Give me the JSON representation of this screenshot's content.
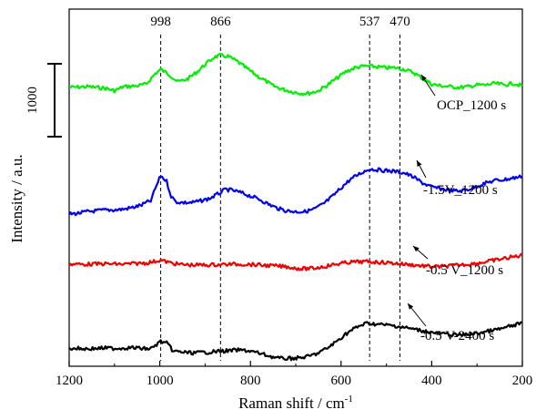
{
  "chart_data": {
    "type": "line",
    "title": "",
    "xlabel": "Raman shift / cm",
    "xlabel_superscript": "-1",
    "ylabel": "Intensity / a.u.",
    "xlim": [
      1200,
      200
    ],
    "x_reversed": true,
    "x_ticks": [
      1200,
      1000,
      800,
      600,
      400,
      200
    ],
    "x_tick_labels": [
      "1200",
      "1000",
      "800",
      "600",
      "400",
      "200"
    ],
    "y_ticks_shown": false,
    "grid": false,
    "legend": "none",
    "scale_bar": {
      "label": "1000",
      "value": 1000
    },
    "reference_lines": [
      {
        "x": 998,
        "label": "998"
      },
      {
        "x": 866,
        "label": "866"
      },
      {
        "x": 537,
        "label": "537"
      },
      {
        "x": 470,
        "label": "470"
      }
    ],
    "series": [
      {
        "name": "OCP_1200 s",
        "color": "#00ee00",
        "points": [
          [
            1200,
            1550
          ],
          [
            1160,
            1560
          ],
          [
            1120,
            1540
          ],
          [
            1100,
            1510
          ],
          [
            1080,
            1560
          ],
          [
            1050,
            1570
          ],
          [
            1030,
            1590
          ],
          [
            1010,
            1720
          ],
          [
            998,
            1770
          ],
          [
            980,
            1710
          ],
          [
            960,
            1620
          ],
          [
            940,
            1650
          ],
          [
            920,
            1730
          ],
          [
            900,
            1830
          ],
          [
            880,
            1920
          ],
          [
            866,
            1940
          ],
          [
            850,
            1930
          ],
          [
            830,
            1870
          ],
          [
            810,
            1790
          ],
          [
            790,
            1710
          ],
          [
            770,
            1640
          ],
          [
            750,
            1570
          ],
          [
            730,
            1530
          ],
          [
            710,
            1500
          ],
          [
            690,
            1480
          ],
          [
            670,
            1480
          ],
          [
            650,
            1510
          ],
          [
            630,
            1580
          ],
          [
            610,
            1660
          ],
          [
            590,
            1740
          ],
          [
            570,
            1790
          ],
          [
            550,
            1810
          ],
          [
            537,
            1810
          ],
          [
            520,
            1800
          ],
          [
            500,
            1790
          ],
          [
            480,
            1790
          ],
          [
            460,
            1770
          ],
          [
            440,
            1730
          ],
          [
            420,
            1660
          ],
          [
            400,
            1590
          ],
          [
            380,
            1570
          ],
          [
            360,
            1560
          ],
          [
            340,
            1550
          ],
          [
            320,
            1560
          ],
          [
            300,
            1580
          ],
          [
            280,
            1580
          ],
          [
            260,
            1600
          ],
          [
            240,
            1580
          ],
          [
            220,
            1600
          ],
          [
            200,
            1570
          ]
        ]
      },
      {
        "name": "-1.5V_1200 s",
        "color": "#0000ee",
        "points": [
          [
            1200,
            840
          ],
          [
            1180,
            850
          ],
          [
            1160,
            870
          ],
          [
            1140,
            880
          ],
          [
            1120,
            890
          ],
          [
            1100,
            890
          ],
          [
            1080,
            900
          ],
          [
            1060,
            920
          ],
          [
            1040,
            950
          ],
          [
            1030,
            980
          ],
          [
            1020,
            1000
          ],
          [
            1010,
            1150
          ],
          [
            998,
            1310
          ],
          [
            985,
            1240
          ],
          [
            975,
            1060
          ],
          [
            965,
            990
          ],
          [
            950,
            980
          ],
          [
            930,
            980
          ],
          [
            910,
            1000
          ],
          [
            890,
            1030
          ],
          [
            870,
            1090
          ],
          [
            855,
            1140
          ],
          [
            840,
            1130
          ],
          [
            820,
            1100
          ],
          [
            800,
            1060
          ],
          [
            780,
            1020
          ],
          [
            760,
            960
          ],
          [
            740,
            910
          ],
          [
            720,
            880
          ],
          [
            700,
            870
          ],
          [
            680,
            870
          ],
          [
            660,
            900
          ],
          [
            640,
            960
          ],
          [
            620,
            1050
          ],
          [
            600,
            1160
          ],
          [
            580,
            1260
          ],
          [
            560,
            1330
          ],
          [
            545,
            1370
          ],
          [
            537,
            1390
          ],
          [
            520,
            1380
          ],
          [
            500,
            1370
          ],
          [
            480,
            1360
          ],
          [
            460,
            1340
          ],
          [
            440,
            1290
          ],
          [
            420,
            1220
          ],
          [
            400,
            1170
          ],
          [
            380,
            1150
          ],
          [
            360,
            1130
          ],
          [
            340,
            1120
          ],
          [
            320,
            1140
          ],
          [
            300,
            1180
          ],
          [
            280,
            1220
          ],
          [
            260,
            1250
          ],
          [
            240,
            1260
          ],
          [
            220,
            1280
          ],
          [
            200,
            1300
          ]
        ]
      },
      {
        "name": "-0.5 V_1200 s",
        "color": "#ee0000",
        "points": [
          [
            1200,
            670
          ],
          [
            1160,
            670
          ],
          [
            1120,
            675
          ],
          [
            1080,
            670
          ],
          [
            1050,
            680
          ],
          [
            1030,
            685
          ],
          [
            1010,
            705
          ],
          [
            998,
            720
          ],
          [
            980,
            690
          ],
          [
            960,
            670
          ],
          [
            930,
            660
          ],
          [
            900,
            660
          ],
          [
            870,
            665
          ],
          [
            840,
            670
          ],
          [
            810,
            670
          ],
          [
            780,
            660
          ],
          [
            750,
            650
          ],
          [
            720,
            640
          ],
          [
            700,
            620
          ],
          [
            680,
            615
          ],
          [
            660,
            620
          ],
          [
            640,
            640
          ],
          [
            620,
            660
          ],
          [
            600,
            680
          ],
          [
            580,
            695
          ],
          [
            560,
            700
          ],
          [
            537,
            700
          ],
          [
            520,
            695
          ],
          [
            500,
            690
          ],
          [
            480,
            680
          ],
          [
            460,
            670
          ],
          [
            440,
            660
          ],
          [
            420,
            650
          ],
          [
            400,
            640
          ],
          [
            380,
            640
          ],
          [
            360,
            650
          ],
          [
            340,
            660
          ],
          [
            320,
            670
          ],
          [
            300,
            680
          ],
          [
            280,
            700
          ],
          [
            260,
            720
          ],
          [
            240,
            740
          ],
          [
            220,
            760
          ],
          [
            200,
            780
          ]
        ]
      },
      {
        "name": "-0.5 V-2400 s",
        "color": "#000000",
        "points": [
          [
            1200,
            120
          ],
          [
            1180,
            115
          ],
          [
            1160,
            110
          ],
          [
            1140,
            115
          ],
          [
            1120,
            120
          ],
          [
            1100,
            115
          ],
          [
            1080,
            120
          ],
          [
            1060,
            125
          ],
          [
            1040,
            115
          ],
          [
            1020,
            110
          ],
          [
            1010,
            150
          ],
          [
            998,
            200
          ],
          [
            985,
            180
          ],
          [
            970,
            80
          ],
          [
            950,
            70
          ],
          [
            930,
            60
          ],
          [
            910,
            65
          ],
          [
            890,
            70
          ],
          [
            870,
            80
          ],
          [
            850,
            85
          ],
          [
            830,
            95
          ],
          [
            810,
            90
          ],
          [
            790,
            70
          ],
          [
            770,
            40
          ],
          [
            750,
            10
          ],
          [
            730,
            -10
          ],
          [
            710,
            -5
          ],
          [
            690,
            0
          ],
          [
            670,
            20
          ],
          [
            650,
            60
          ],
          [
            630,
            120
          ],
          [
            610,
            200
          ],
          [
            590,
            290
          ],
          [
            570,
            360
          ],
          [
            555,
            400
          ],
          [
            545,
            420
          ],
          [
            537,
            420
          ],
          [
            520,
            410
          ],
          [
            500,
            400
          ],
          [
            480,
            390
          ],
          [
            470,
            380
          ],
          [
            450,
            360
          ],
          [
            430,
            340
          ],
          [
            410,
            320
          ],
          [
            390,
            300
          ],
          [
            370,
            290
          ],
          [
            350,
            280
          ],
          [
            330,
            280
          ],
          [
            310,
            290
          ],
          [
            290,
            310
          ],
          [
            270,
            330
          ],
          [
            250,
            350
          ],
          [
            230,
            380
          ],
          [
            210,
            410
          ],
          [
            200,
            430
          ]
        ]
      }
    ],
    "curve_labels": [
      "OCP_1200 s",
      "-1.5V_1200 s",
      "-0.5 V_1200 s",
      "-0.5 V-2400 s"
    ]
  }
}
